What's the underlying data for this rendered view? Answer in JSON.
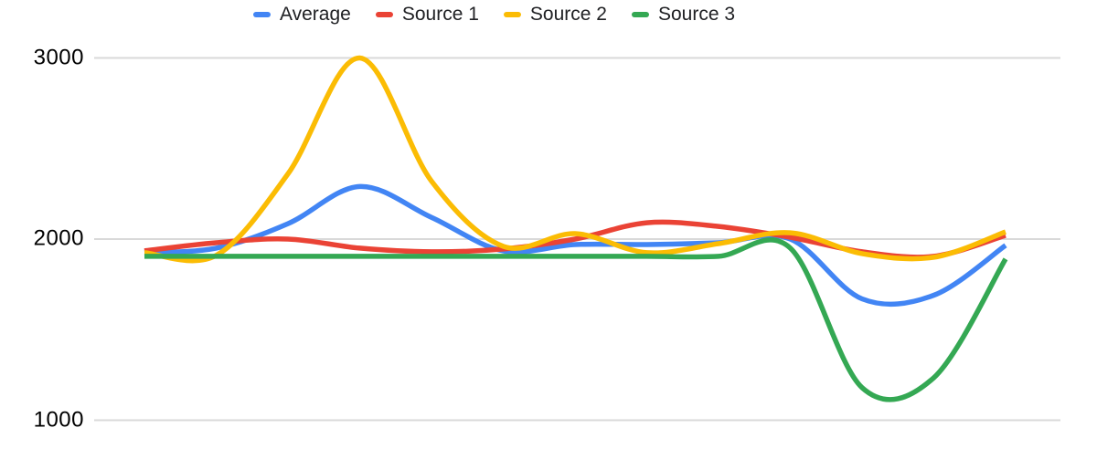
{
  "chart_data": {
    "type": "line",
    "smooth": true,
    "title": "",
    "legend_position": "top",
    "grid": true,
    "background": "#ffffff",
    "gridline_color": "#d9d9d9",
    "axis_label_color": "#000000",
    "legend_text_color": "#202124",
    "yticks": [
      {
        "value": 3000,
        "label": "3000"
      },
      {
        "value": 2000,
        "label": "2000"
      },
      {
        "value": 1000,
        "label": "1000"
      }
    ],
    "ylim": [
      800,
      3100
    ],
    "x_labels_visible": false,
    "num_points": 13,
    "series": [
      {
        "name": "Average",
        "color": "#4285F4",
        "values": [
          1925,
          1950,
          2085,
          2290,
          2120,
          1935,
          1970,
          1970,
          1980,
          2000,
          1670,
          1690,
          1965
        ]
      },
      {
        "name": "Source 1",
        "color": "#EA4335",
        "values": [
          1935,
          1980,
          2000,
          1950,
          1930,
          1945,
          2000,
          2090,
          2070,
          2010,
          1930,
          1905,
          2020
        ]
      },
      {
        "name": "Source 2",
        "color": "#FBBC04",
        "values": [
          1925,
          1910,
          2360,
          3000,
          2320,
          1960,
          2030,
          1925,
          1975,
          2035,
          1920,
          1900,
          2040
        ]
      },
      {
        "name": "Source 3",
        "color": "#34A853",
        "values": [
          1905,
          1905,
          1905,
          1905,
          1905,
          1905,
          1905,
          1905,
          1905,
          1950,
          1180,
          1235,
          1890
        ]
      }
    ]
  }
}
